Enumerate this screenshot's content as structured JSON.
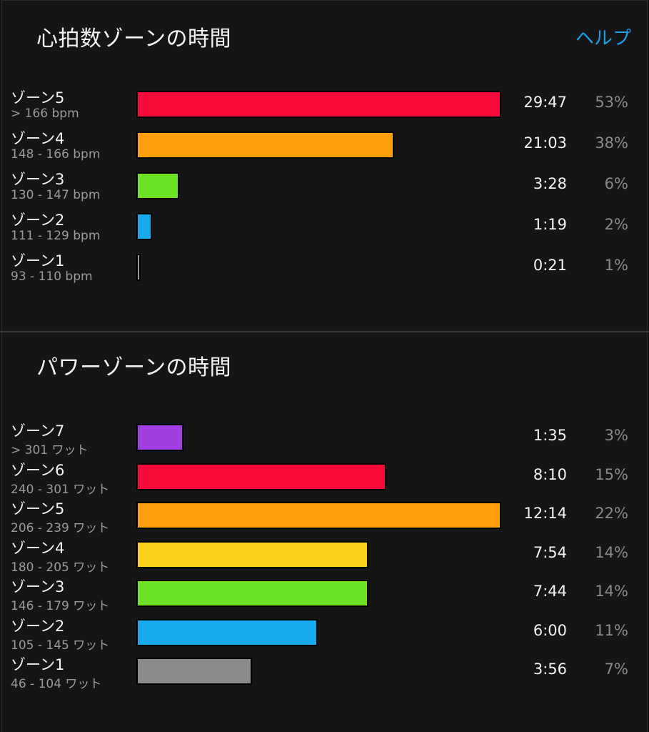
{
  "heart_rate": {
    "title": "心拍数ゾーンの時間",
    "help_label": "ヘルプ",
    "zones": [
      {
        "name": "ゾーン5",
        "range": "> 166 bpm",
        "time": "29:47",
        "percent": "53%",
        "fraction": 1.0,
        "color": "#f50a3a"
      },
      {
        "name": "ゾーン4",
        "range": "148 - 166 bpm",
        "time": "21:03",
        "percent": "38%",
        "fraction": 0.707,
        "color": "#ff9f0e"
      },
      {
        "name": "ゾーン3",
        "range": "130 - 147 bpm",
        "time": "3:28",
        "percent": "6%",
        "fraction": 0.117,
        "color": "#6de326"
      },
      {
        "name": "ゾーン2",
        "range": "111 - 129 bpm",
        "time": "1:19",
        "percent": "2%",
        "fraction": 0.044,
        "color": "#16a9ec"
      },
      {
        "name": "ゾーン1",
        "range": "93 - 110 bpm",
        "time": "0:21",
        "percent": "1%",
        "fraction": 0.012,
        "color": "#9a9a9a"
      }
    ]
  },
  "power": {
    "title": "パワーゾーンの時間",
    "zones": [
      {
        "name": "ゾーン7",
        "range": "> 301 ワット",
        "time": "1:35",
        "percent": "3%",
        "fraction": 0.13,
        "color": "#a23fe0"
      },
      {
        "name": "ゾーン6",
        "range": "240 - 301 ワット",
        "time": "8:10",
        "percent": "15%",
        "fraction": 0.685,
        "color": "#f50a3a"
      },
      {
        "name": "ゾーン5",
        "range": "206 - 239 ワット",
        "time": "12:14",
        "percent": "22%",
        "fraction": 1.0,
        "color": "#ff9f0e"
      },
      {
        "name": "ゾーン4",
        "range": "180 - 205 ワット",
        "time": "7:54",
        "percent": "14%",
        "fraction": 0.636,
        "color": "#fcd21e"
      },
      {
        "name": "ゾーン3",
        "range": "146 - 179 ワット",
        "time": "7:44",
        "percent": "14%",
        "fraction": 0.636,
        "color": "#6de326"
      },
      {
        "name": "ゾーン2",
        "range": "105 - 145 ワット",
        "time": "6:00",
        "percent": "11%",
        "fraction": 0.497,
        "color": "#16a9ec"
      },
      {
        "name": "ゾーン1",
        "range": "46 - 104 ワット",
        "time": "3:56",
        "percent": "7%",
        "fraction": 0.318,
        "color": "#8c8c8c"
      }
    ]
  }
}
